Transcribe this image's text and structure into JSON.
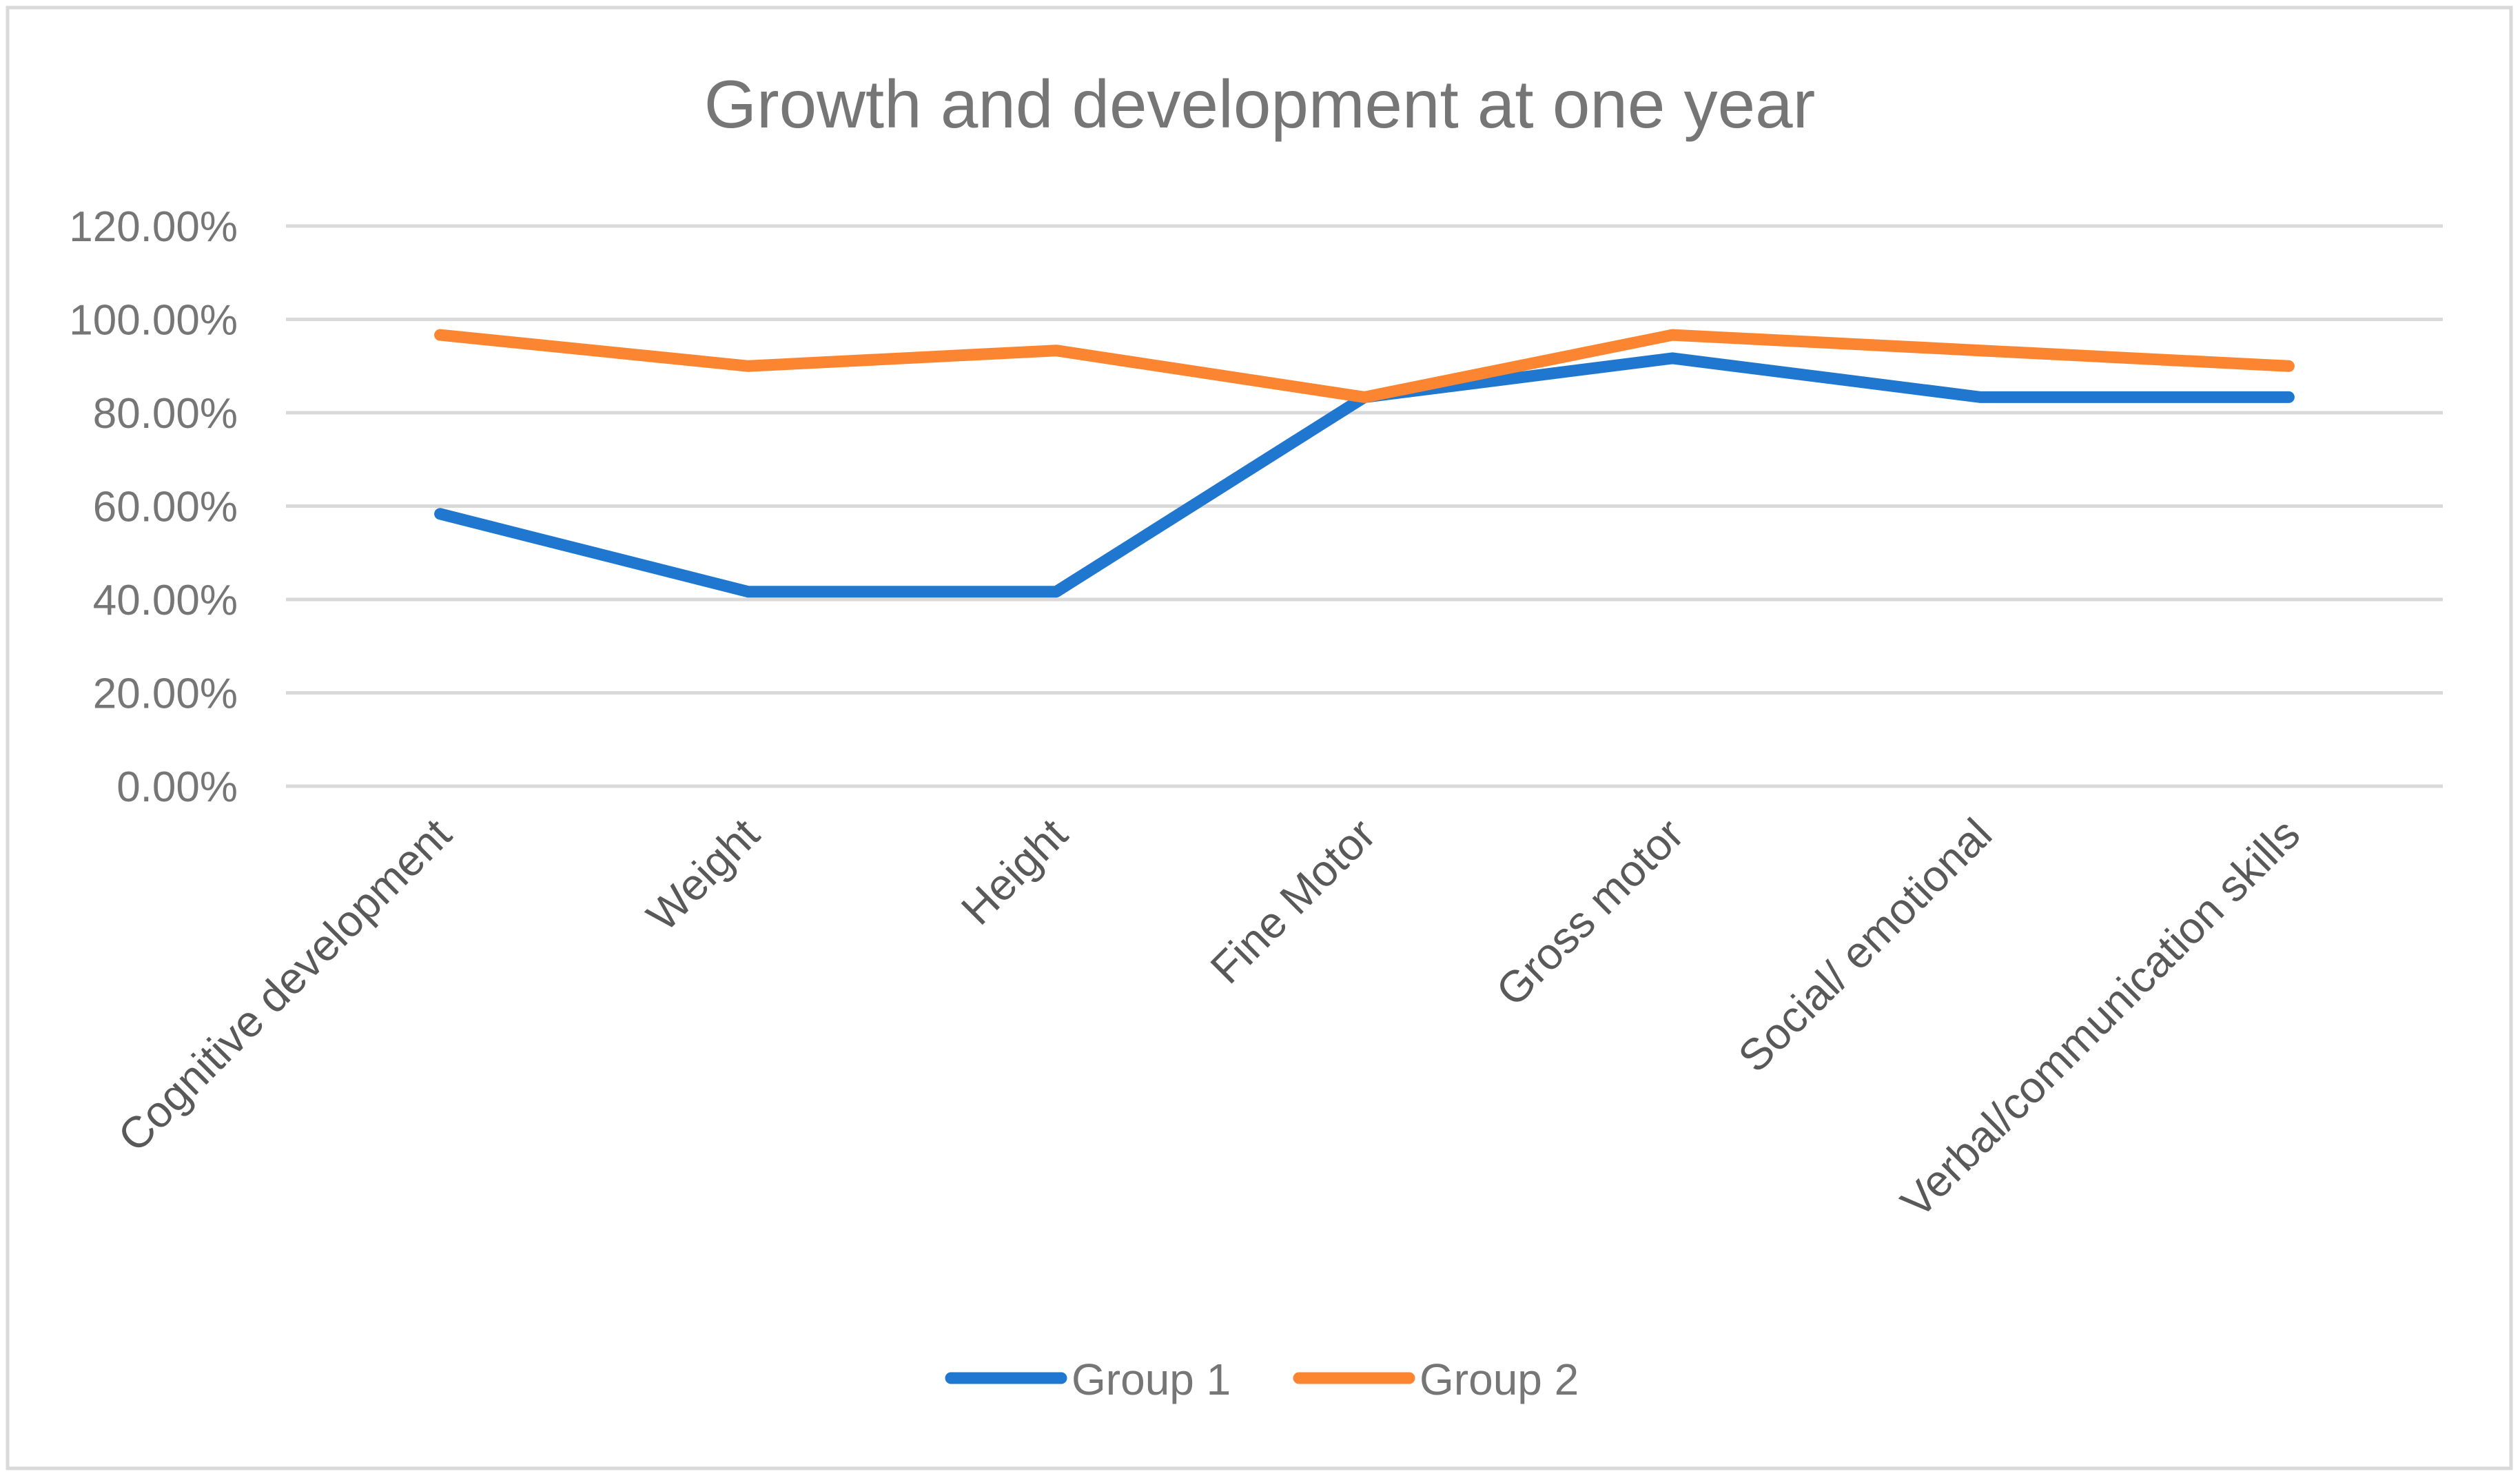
{
  "chart_data": {
    "type": "line",
    "title": "Growth and development at one year",
    "xlabel": "",
    "ylabel": "",
    "categories": [
      "Cognitive development",
      "Weight",
      "Height",
      "Fine Motor",
      "Gross motor",
      "Social/ emotional",
      "Verbal/communication skills"
    ],
    "series": [
      {
        "name": "Group 1",
        "color": "#1f77d0",
        "values": [
          58.33,
          41.67,
          41.67,
          83.33,
          91.67,
          83.33,
          83.33
        ]
      },
      {
        "name": "Group 2",
        "color": "#fb8530",
        "values": [
          96.67,
          90.0,
          93.33,
          83.33,
          96.67,
          93.33,
          90.0
        ]
      }
    ],
    "ylim": [
      0,
      120
    ],
    "yticks": [
      "0.00%",
      "20.00%",
      "40.00%",
      "60.00%",
      "80.00%",
      "100.00%",
      "120.00%"
    ],
    "grid": true,
    "legend": "bottom-center",
    "colors": {
      "text": "#767676",
      "grid": "#d9d9d9",
      "border": "#d9d9d9"
    }
  }
}
